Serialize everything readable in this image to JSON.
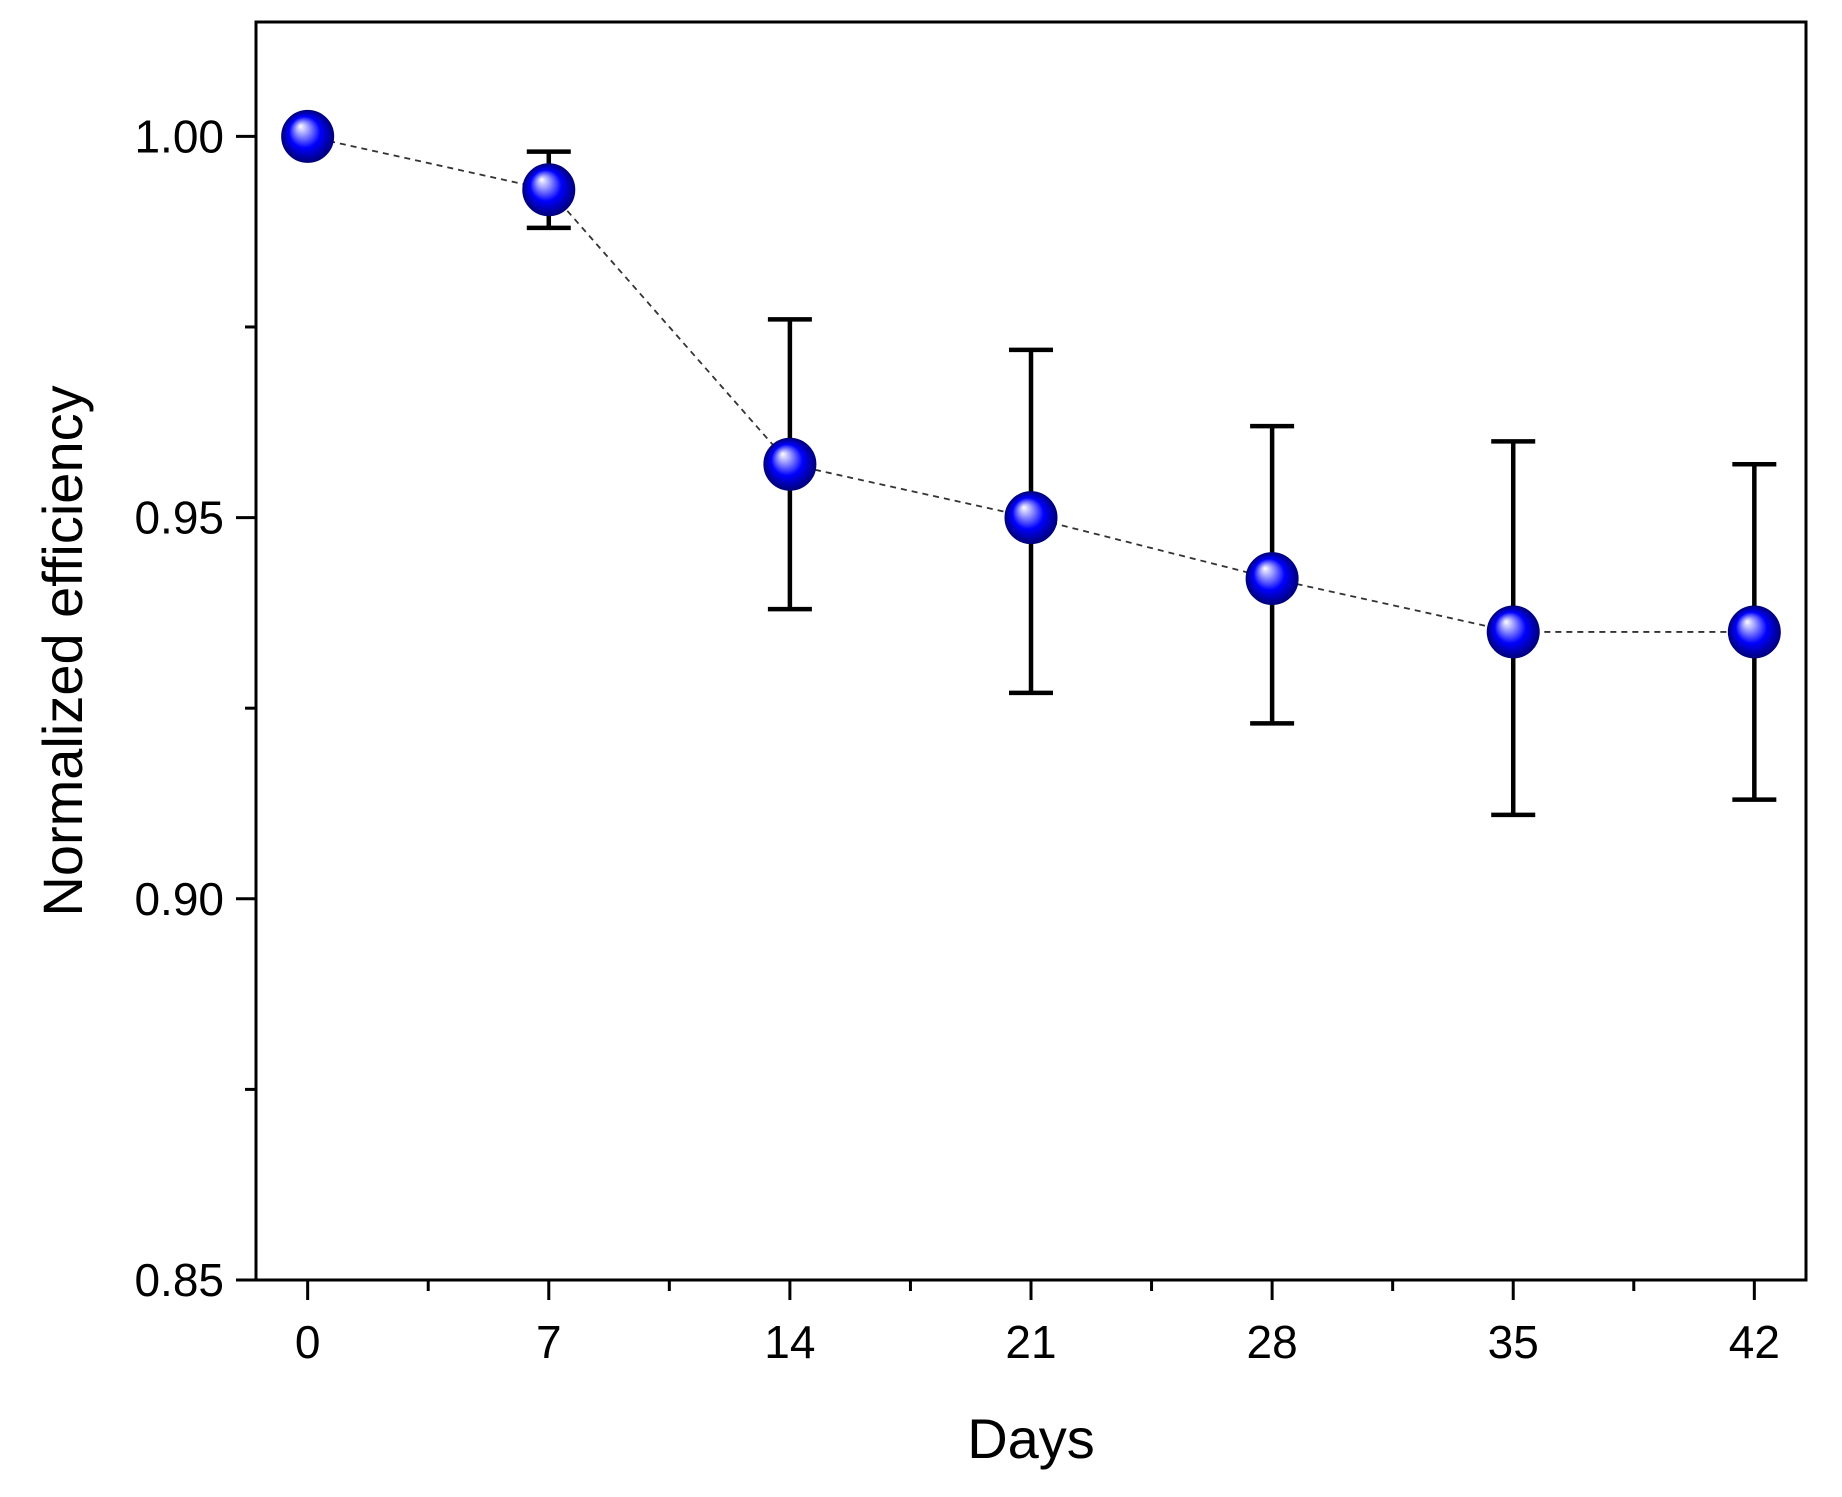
{
  "chart_data": {
    "type": "scatter",
    "title": "",
    "xlabel": "Days",
    "ylabel": "Normalized efficiency",
    "xlim": [
      -1.5,
      43.5
    ],
    "ylim": [
      0.85,
      1.015
    ],
    "x_ticks": [
      0,
      7,
      14,
      21,
      28,
      35,
      42
    ],
    "x_tick_labels": [
      "0",
      "7",
      "14",
      "21",
      "28",
      "35",
      "42"
    ],
    "x_minor_ticks": [
      3.5,
      10.5,
      17.5,
      24.5,
      31.5,
      38.5
    ],
    "y_ticks": [
      0.85,
      0.9,
      0.95,
      1.0
    ],
    "y_tick_labels": [
      "0.85",
      "0.90",
      "0.95",
      "1.00"
    ],
    "y_minor_ticks": [
      0.875,
      0.925,
      0.975
    ],
    "grid": false,
    "series": [
      {
        "name": "Normalized efficiency",
        "marker_color": "#0000ff",
        "line_style": "dashed",
        "x": [
          0,
          7,
          14,
          21,
          28,
          35,
          42
        ],
        "y": [
          1.0,
          0.993,
          0.957,
          0.95,
          0.942,
          0.935,
          0.935
        ],
        "error_low": [
          1.0,
          0.988,
          0.938,
          0.927,
          0.923,
          0.911,
          0.913
        ],
        "error_high": [
          1.0,
          0.998,
          0.976,
          0.972,
          0.962,
          0.96,
          0.957
        ]
      }
    ]
  }
}
